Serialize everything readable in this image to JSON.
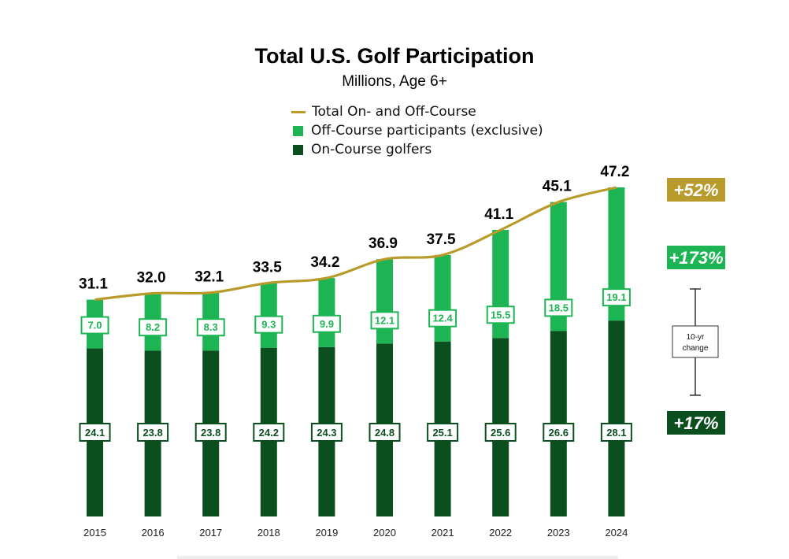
{
  "chart_data": {
    "type": "bar",
    "stacked": true,
    "title": "Total U.S. Golf Participation",
    "subtitle": "Millions, Age 6+",
    "categories": [
      "2015",
      "2016",
      "2017",
      "2018",
      "2019",
      "2020",
      "2021",
      "2022",
      "2023",
      "2024"
    ],
    "series": [
      {
        "name": "On-Course golfers",
        "color": "#0b4f1f",
        "values": [
          24.1,
          23.8,
          23.8,
          24.2,
          24.3,
          24.8,
          25.1,
          25.6,
          26.6,
          28.1
        ]
      },
      {
        "name": "Off-Course participants (exclusive)",
        "color": "#1db554",
        "values": [
          7.0,
          8.2,
          8.3,
          9.3,
          9.9,
          12.1,
          12.4,
          15.5,
          18.5,
          19.1
        ]
      },
      {
        "name": "Total On- and Off-Course",
        "type": "line",
        "color": "#b89b2b",
        "values": [
          31.1,
          32.0,
          32.1,
          33.5,
          34.2,
          36.9,
          37.5,
          41.1,
          45.1,
          47.2
        ],
        "labels": [
          "31.1",
          "32.0",
          "32.1",
          "33.5",
          "34.2",
          "36.9",
          "37.5",
          "41.1",
          "45.1",
          "47.2"
        ]
      }
    ],
    "ylim": [
      0,
      47.2
    ],
    "grid": false,
    "legend": "top-center",
    "change_badges": [
      {
        "label": "+52%",
        "series": "Total On- and Off-Course",
        "color": "#b89b2b"
      },
      {
        "label": "+173%",
        "series": "Off-Course participants (exclusive)",
        "color": "#1db554"
      },
      {
        "label": "+17%",
        "series": "On-Course golfers",
        "color": "#0b4f1f"
      }
    ],
    "change_note": [
      "10-yr",
      "change"
    ]
  }
}
